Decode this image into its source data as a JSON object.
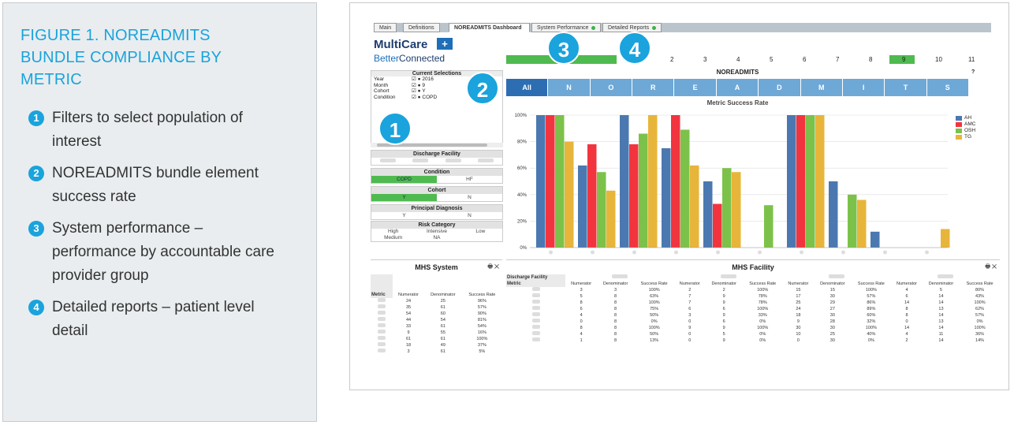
{
  "figure": {
    "title": "FIGURE 1. NOREADMITS BUNDLE COMPLIANCE BY METRIC",
    "notes": [
      {
        "num": "1",
        "text": "Filters to select population of interest"
      },
      {
        "num": "2",
        "text": "NOREADMITS bundle element success rate"
      },
      {
        "num": "3",
        "text": "System performance – performance by accountable care provider group"
      },
      {
        "num": "4",
        "text": "Detailed reports – patient level detail"
      }
    ]
  },
  "colors": {
    "accent": "#1aa3dc",
    "bundle_active": "#2d6eb3",
    "bundle": "#6ea8d6",
    "green": "#4fba4f",
    "AH": "#4b78b0",
    "AMC": "#f2343f",
    "OSH": "#7cc24a",
    "TG": "#e8b53b"
  },
  "tabs": [
    "Main",
    "Definitions",
    "NOREADMITS Dashboard",
    "System Performance",
    "Detailed Reports"
  ],
  "logo": {
    "brand": "MultiCare",
    "tag_a": "Better",
    "tag_b": "Connected"
  },
  "system_performance": {
    "percent_label": "20%",
    "months": [
      "1",
      "2",
      "3",
      "4",
      "5",
      "6",
      "7",
      "8",
      "9",
      "10",
      "11"
    ],
    "selected": "9"
  },
  "current_selections": {
    "title": "Current Selections",
    "rows": [
      {
        "field": "Year",
        "value": "2016"
      },
      {
        "field": "Month",
        "value": "9"
      },
      {
        "field": "Cohort",
        "value": "Y"
      },
      {
        "field": "Condition",
        "value": "COPD"
      }
    ]
  },
  "filters": {
    "discharge_facility": "Discharge Facility",
    "condition": {
      "title": "Condition",
      "options": [
        "COPD",
        "HF"
      ]
    },
    "cohort": {
      "title": "Cohort",
      "options": [
        "Y",
        "N"
      ]
    },
    "principal_diagnosis": {
      "title": "Principal Diagnosis",
      "options": [
        "Y",
        "N"
      ]
    },
    "risk_category": {
      "title": "Risk Category",
      "row1": [
        "High",
        "Intensive",
        "Low"
      ],
      "row2": [
        "Medium",
        "NA",
        ""
      ]
    }
  },
  "bundle": {
    "title": "NOREADMITS",
    "help": "?",
    "buttons": [
      "All",
      "N",
      "O",
      "R",
      "E",
      "A",
      "D",
      "M",
      "I",
      "T",
      "S"
    ]
  },
  "chart_data": {
    "type": "bar",
    "title": "Metric Success Rate",
    "xlabel": "",
    "ylabel": "",
    "ylim": [
      0,
      100
    ],
    "yticks": [
      "0%",
      "20%",
      "40%",
      "60%",
      "80%",
      "100%"
    ],
    "grid": true,
    "legend_position": "right",
    "categories": [
      "N",
      "O",
      "R",
      "E",
      "A",
      "D",
      "M",
      "I",
      "T",
      "S"
    ],
    "series": [
      {
        "name": "AH",
        "values": [
          100,
          62,
          100,
          75,
          50,
          0,
          100,
          50,
          12,
          0
        ]
      },
      {
        "name": "AMC",
        "values": [
          100,
          78,
          78,
          100,
          33,
          0,
          100,
          0,
          0,
          0
        ]
      },
      {
        "name": "OSH",
        "values": [
          100,
          57,
          86,
          89,
          60,
          32,
          100,
          40,
          0,
          0
        ]
      },
      {
        "name": "TG",
        "values": [
          80,
          43,
          100,
          62,
          57,
          0,
          100,
          36,
          0,
          14
        ]
      }
    ]
  },
  "mhs_system": {
    "title": "MHS System",
    "icons": "🖶 ✕",
    "headers": [
      "Metric",
      "Numerator",
      "Denominator",
      "Success Rate"
    ],
    "rows": [
      [
        "24",
        "25",
        "96%"
      ],
      [
        "35",
        "61",
        "57%"
      ],
      [
        "54",
        "60",
        "90%"
      ],
      [
        "44",
        "54",
        "81%"
      ],
      [
        "33",
        "61",
        "54%"
      ],
      [
        "9",
        "55",
        "16%"
      ],
      [
        "61",
        "61",
        "100%"
      ],
      [
        "18",
        "49",
        "37%"
      ],
      [
        "3",
        "61",
        "5%"
      ]
    ]
  },
  "mhs_facility": {
    "title": "MHS Facility",
    "icons": "🖶 ✕",
    "facility_label": "Discharge Facility",
    "metric_label": "Metric",
    "headers": [
      "Numerator",
      "Denominator",
      "Success Rate"
    ],
    "rows": [
      [
        "3",
        "3",
        "100%",
        "2",
        "2",
        "100%",
        "15",
        "15",
        "100%",
        "4",
        "5",
        "80%"
      ],
      [
        "5",
        "8",
        "63%",
        "7",
        "9",
        "78%",
        "17",
        "30",
        "57%",
        "6",
        "14",
        "43%"
      ],
      [
        "8",
        "8",
        "100%",
        "7",
        "9",
        "78%",
        "25",
        "29",
        "86%",
        "14",
        "14",
        "100%"
      ],
      [
        "6",
        "8",
        "75%",
        "6",
        "6",
        "100%",
        "24",
        "27",
        "89%",
        "8",
        "13",
        "62%"
      ],
      [
        "4",
        "8",
        "50%",
        "3",
        "9",
        "33%",
        "18",
        "30",
        "60%",
        "8",
        "14",
        "57%"
      ],
      [
        "0",
        "8",
        "0%",
        "0",
        "6",
        "0%",
        "9",
        "28",
        "32%",
        "0",
        "13",
        "0%"
      ],
      [
        "8",
        "8",
        "100%",
        "9",
        "9",
        "100%",
        "30",
        "30",
        "100%",
        "14",
        "14",
        "100%"
      ],
      [
        "4",
        "8",
        "50%",
        "0",
        "5",
        "0%",
        "10",
        "25",
        "40%",
        "4",
        "11",
        "36%"
      ],
      [
        "1",
        "8",
        "13%",
        "0",
        "9",
        "0%",
        "0",
        "30",
        "0%",
        "2",
        "14",
        "14%"
      ]
    ]
  },
  "badges": [
    "1",
    "2",
    "3",
    "4"
  ]
}
